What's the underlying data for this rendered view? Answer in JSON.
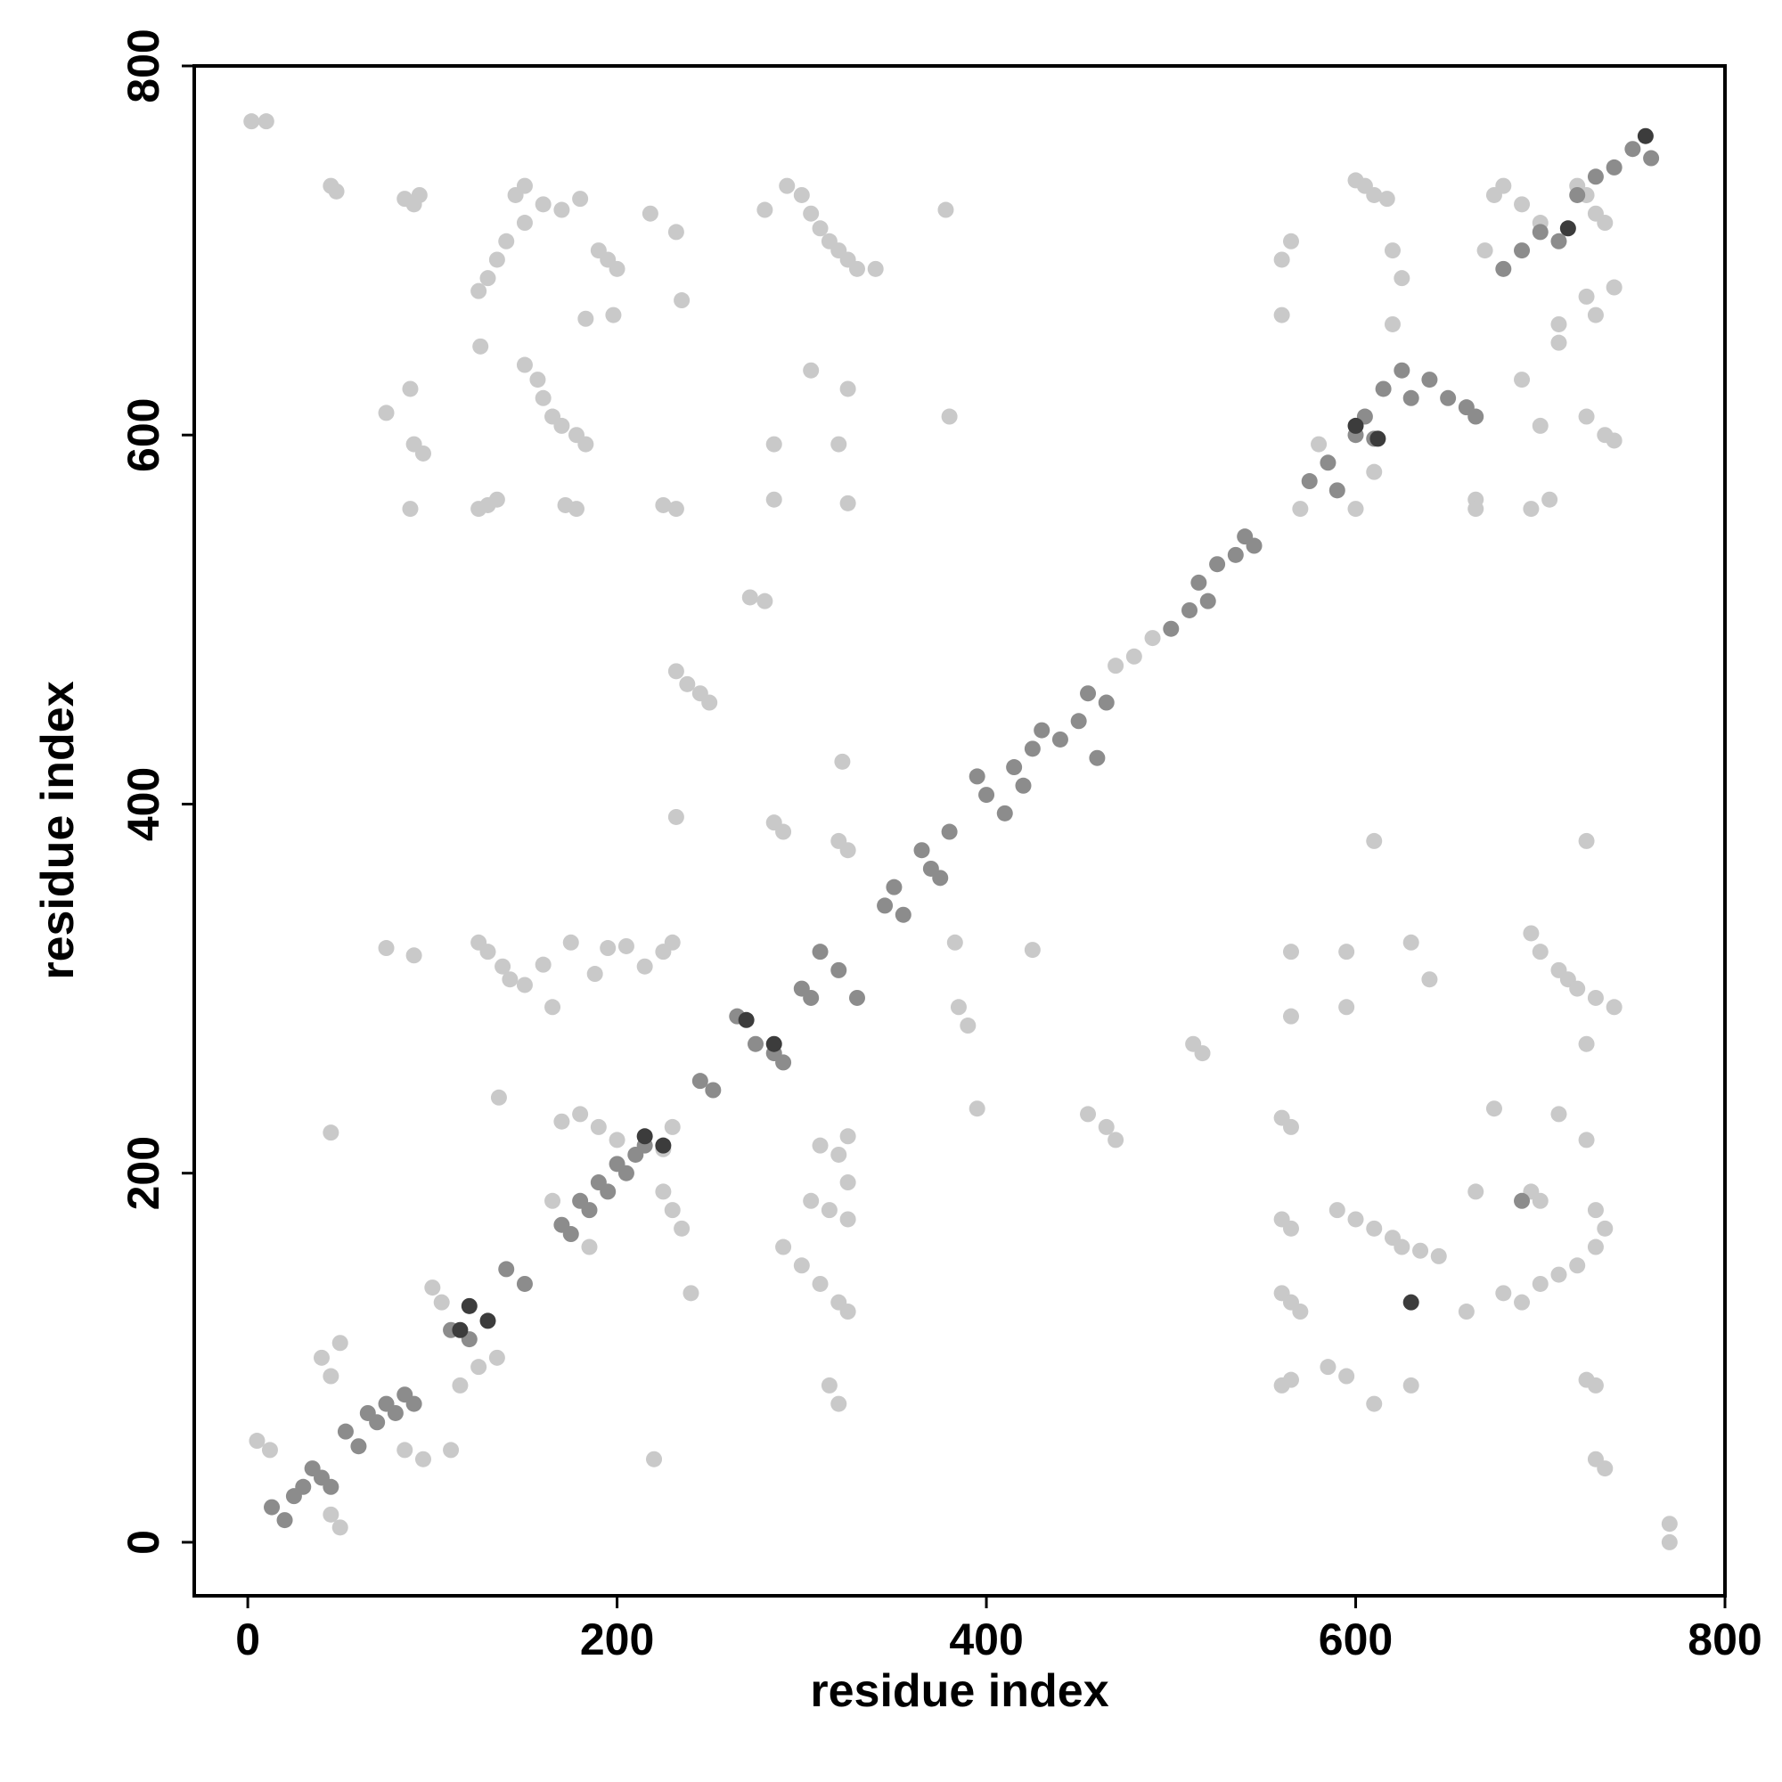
{
  "chart_data": {
    "type": "scatter",
    "x_label": "residue index",
    "y_label": "residue index",
    "xlim": [
      -29,
      800
    ],
    "ylim": [
      -29,
      800
    ],
    "xticks": [
      0,
      200,
      400,
      600,
      800
    ],
    "yticks": [
      0,
      200,
      400,
      600,
      800
    ],
    "grid": false,
    "series": [
      {
        "color": "#c9c9c9",
        "x": [
          2,
          10,
          45,
          48,
          85,
          90,
          93,
          150,
          145,
          160,
          170,
          180,
          150,
          140,
          135,
          130,
          125,
          190,
          195,
          200,
          183,
          198,
          218,
          232,
          235,
          280,
          292,
          300,
          305,
          310,
          315,
          320,
          325,
          330,
          340,
          378,
          126,
          150,
          157,
          160,
          165,
          170,
          178,
          183,
          75,
          88,
          90,
          95,
          88,
          125,
          130,
          135,
          172,
          178,
          225,
          232,
          285,
          305,
          325,
          320,
          380,
          285,
          325,
          272,
          280,
          232,
          238,
          245,
          250,
          232,
          322,
          285,
          290,
          320,
          325,
          75,
          90,
          125,
          130,
          138,
          142,
          150,
          165,
          160,
          175,
          188,
          195,
          205,
          215,
          225,
          230,
          136,
          45,
          170,
          180,
          190,
          200,
          225,
          230,
          225,
          230,
          235,
          240,
          185,
          165,
          5,
          12,
          40,
          45,
          50,
          85,
          95,
          110,
          100,
          105,
          115,
          125,
          135,
          45,
          50,
          220,
          290,
          300,
          310,
          320,
          325,
          310,
          320,
          325,
          305,
          315,
          325,
          325,
          315,
          320,
          383,
          385,
          390,
          395,
          425,
          455,
          465,
          470,
          512,
          517,
          490,
          480,
          470,
          600,
          605,
          610,
          617,
          620,
          625,
          560,
          565,
          560,
          570,
          580,
          600,
          610,
          620,
          670,
          675,
          680,
          690,
          700,
          720,
          725,
          730,
          735,
          725,
          730,
          740,
          710,
          690,
          700,
          705,
          695,
          665,
          665,
          725,
          735,
          740,
          710,
          695,
          700,
          710,
          715,
          720,
          730,
          740,
          725,
          565,
          595,
          630,
          640,
          595,
          565,
          610,
          725,
          560,
          565,
          675,
          710,
          725,
          560,
          565,
          590,
          600,
          610,
          620,
          625,
          635,
          645,
          560,
          565,
          570,
          585,
          595,
          610,
          630,
          560,
          565,
          660,
          665,
          695,
          700,
          680,
          690,
          700,
          710,
          720,
          730,
          735,
          730,
          725,
          730,
          730,
          735,
          770,
          770
        ],
        "values": [
          770,
          770,
          735,
          732,
          728,
          725,
          730,
          735,
          730,
          725,
          722,
          728,
          715,
          705,
          695,
          685,
          678,
          700,
          695,
          690,
          663,
          665,
          720,
          710,
          673,
          722,
          735,
          730,
          720,
          712,
          705,
          700,
          695,
          690,
          690,
          722,
          648,
          638,
          630,
          620,
          610,
          605,
          600,
          595,
          612,
          625,
          595,
          590,
          560,
          560,
          562,
          565,
          562,
          560,
          562,
          560,
          595,
          635,
          625,
          595,
          610,
          565,
          563,
          512,
          510,
          472,
          465,
          460,
          455,
          393,
          423,
          390,
          385,
          380,
          375,
          322,
          318,
          325,
          320,
          312,
          305,
          302,
          290,
          313,
          325,
          308,
          322,
          323,
          312,
          320,
          325,
          241,
          222,
          228,
          232,
          225,
          218,
          213,
          225,
          190,
          180,
          170,
          135,
          160,
          185,
          55,
          50,
          100,
          90,
          108,
          50,
          45,
          50,
          138,
          130,
          85,
          95,
          100,
          15,
          8,
          45,
          160,
          150,
          140,
          130,
          125,
          215,
          210,
          220,
          185,
          180,
          175,
          195,
          85,
          75,
          325,
          290,
          280,
          235,
          321,
          232,
          225,
          218,
          270,
          265,
          490,
          480,
          475,
          738,
          735,
          730,
          728,
          700,
          685,
          695,
          705,
          665,
          560,
          595,
          560,
          580,
          660,
          700,
          730,
          735,
          725,
          715,
          735,
          730,
          720,
          715,
          675,
          665,
          680,
          660,
          630,
          605,
          565,
          560,
          565,
          560,
          610,
          600,
          597,
          650,
          330,
          320,
          310,
          305,
          300,
          295,
          290,
          270,
          320,
          320,
          325,
          305,
          290,
          285,
          380,
          380,
          230,
          225,
          235,
          232,
          218,
          175,
          170,
          180,
          175,
          170,
          165,
          160,
          158,
          155,
          135,
          130,
          125,
          95,
          90,
          75,
          85,
          85,
          88,
          125,
          190,
          190,
          185,
          135,
          130,
          140,
          145,
          150,
          160,
          170,
          180,
          88,
          85,
          45,
          40,
          10,
          0
        ]
      },
      {
        "color": "#8c8c8c",
        "x": [
          13,
          20,
          25,
          30,
          35,
          40,
          45,
          53,
          60,
          65,
          70,
          75,
          80,
          85,
          90,
          110,
          120,
          140,
          150,
          170,
          175,
          180,
          185,
          190,
          195,
          200,
          205,
          210,
          215,
          245,
          252,
          265,
          275,
          285,
          290,
          300,
          305,
          310,
          320,
          330,
          345,
          350,
          355,
          365,
          370,
          375,
          380,
          395,
          400,
          410,
          415,
          420,
          425,
          430,
          440,
          450,
          455,
          460,
          465,
          500,
          510,
          515,
          520,
          525,
          535,
          540,
          545,
          575,
          585,
          590,
          600,
          605,
          610,
          615,
          625,
          630,
          640,
          650,
          660,
          665,
          680,
          690,
          700,
          710,
          720,
          730,
          740,
          750,
          760,
          690
        ],
        "values": [
          19,
          12,
          25,
          30,
          40,
          35,
          30,
          60,
          52,
          70,
          65,
          75,
          70,
          80,
          75,
          115,
          110,
          148,
          140,
          172,
          167,
          185,
          180,
          195,
          190,
          205,
          200,
          210,
          215,
          250,
          245,
          285,
          270,
          265,
          260,
          300,
          295,
          320,
          310,
          295,
          345,
          355,
          340,
          375,
          365,
          360,
          385,
          415,
          405,
          395,
          420,
          410,
          430,
          440,
          435,
          445,
          460,
          425,
          455,
          495,
          505,
          520,
          510,
          530,
          535,
          545,
          540,
          575,
          585,
          570,
          600,
          610,
          598,
          625,
          635,
          620,
          630,
          620,
          615,
          610,
          690,
          700,
          710,
          705,
          730,
          740,
          745,
          755,
          750,
          185
        ]
      },
      {
        "color": "#3c3c3c",
        "x": [
          120,
          115,
          130,
          215,
          225,
          270,
          285,
          600,
          612,
          630,
          715,
          757
        ],
        "values": [
          128,
          115,
          120,
          220,
          215,
          283,
          270,
          605,
          598,
          130,
          712,
          762
        ]
      }
    ]
  }
}
